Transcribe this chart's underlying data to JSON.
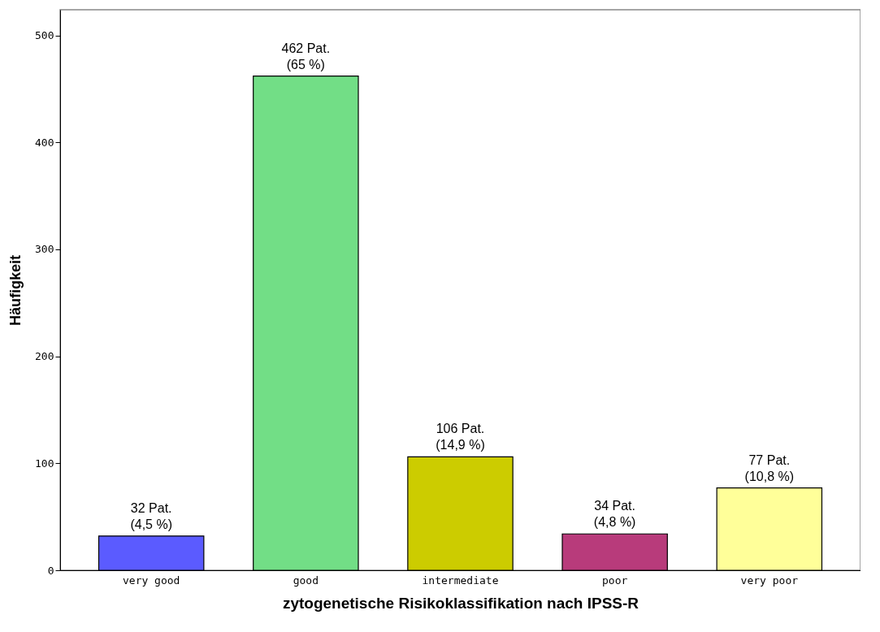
{
  "chart_data": {
    "type": "bar",
    "xlabel": "zytogenetische Risikoklassifikation nach IPSS-R",
    "ylabel": "Häufigkeit",
    "categories": [
      "very good",
      "good",
      "intermediate",
      "poor",
      "very poor"
    ],
    "values": [
      32,
      462,
      106,
      34,
      77
    ],
    "colors": [
      "#5b5bff",
      "#72de86",
      "#cccc00",
      "#b83b7b",
      "#ffff99"
    ],
    "value_labels": [
      "32 Pat.\n(4,5 %)",
      "462 Pat.\n(65 %)",
      "106 Pat.\n(14,9 %)",
      "34 Pat.\n(4,8 %)",
      "77 Pat.\n(10,8 %)"
    ],
    "ylim": [
      0,
      524
    ],
    "yticks": [
      0,
      100,
      200,
      300,
      400,
      500
    ],
    "grid": false
  }
}
